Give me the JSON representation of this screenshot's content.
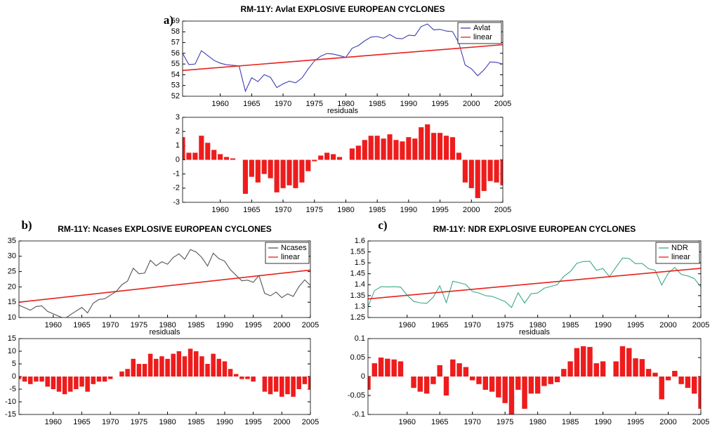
{
  "chart_data": [
    {
      "type": "line",
      "panel_label": "a)",
      "title": "RM-11Y: Avlat EXPLOSIVE EUROPEAN CYCLONES",
      "x": [
        1954,
        1955,
        1956,
        1957,
        1958,
        1959,
        1960,
        1961,
        1962,
        1963,
        1964,
        1965,
        1966,
        1967,
        1968,
        1969,
        1970,
        1971,
        1972,
        1973,
        1974,
        1975,
        1976,
        1977,
        1978,
        1979,
        1980,
        1981,
        1982,
        1983,
        1984,
        1985,
        1986,
        1987,
        1988,
        1989,
        1990,
        1991,
        1992,
        1993,
        1994,
        1995,
        1996,
        1997,
        1998,
        1999,
        2000,
        2001,
        2002,
        2003,
        2004,
        2005
      ],
      "xlim": [
        1954,
        2005
      ],
      "xticks": [
        1960,
        1965,
        1970,
        1975,
        1980,
        1985,
        1990,
        1995,
        2000,
        2005
      ],
      "ylim": [
        52,
        59
      ],
      "yticks": [
        52,
        53,
        54,
        55,
        56,
        57,
        58,
        59
      ],
      "legend": "upper right",
      "series": [
        {
          "name": "Avlat",
          "color": "#3c3cb4",
          "values": [
            56.0,
            54.95,
            55.0,
            56.24,
            55.79,
            55.34,
            55.08,
            54.93,
            54.88,
            54.82,
            52.47,
            53.72,
            53.36,
            54.01,
            53.76,
            52.81,
            53.15,
            53.4,
            53.25,
            53.69,
            54.54,
            55.29,
            55.73,
            55.98,
            55.93,
            55.78,
            55.62,
            56.47,
            56.72,
            57.16,
            57.51,
            57.56,
            57.4,
            57.75,
            57.4,
            57.35,
            57.69,
            57.64,
            58.49,
            58.73,
            58.18,
            58.23,
            58.07,
            58.02,
            56.97,
            54.91,
            54.56,
            53.91,
            54.45,
            55.2,
            55.15,
            55.0
          ]
        },
        {
          "name": "linear",
          "color": "#e8201c",
          "x": [
            1954,
            2005
          ],
          "values": [
            54.4,
            56.8
          ]
        }
      ]
    },
    {
      "type": "bar",
      "title": "residuals",
      "x": [
        1954,
        1955,
        1956,
        1957,
        1958,
        1959,
        1960,
        1961,
        1962,
        1963,
        1964,
        1965,
        1966,
        1967,
        1968,
        1969,
        1970,
        1971,
        1972,
        1973,
        1974,
        1975,
        1976,
        1977,
        1978,
        1979,
        1980,
        1981,
        1982,
        1983,
        1984,
        1985,
        1986,
        1987,
        1988,
        1989,
        1990,
        1991,
        1992,
        1993,
        1994,
        1995,
        1996,
        1997,
        1998,
        1999,
        2000,
        2001,
        2002,
        2003,
        2004,
        2005
      ],
      "xlim": [
        1954,
        2005
      ],
      "xticks": [
        1960,
        1965,
        1970,
        1975,
        1980,
        1985,
        1990,
        1995,
        2000,
        2005
      ],
      "ylim": [
        -3,
        3
      ],
      "yticks": [
        -3,
        -2,
        -1,
        0,
        1,
        2,
        3
      ],
      "color": "#ee1c1c",
      "values": [
        1.6,
        0.5,
        0.5,
        1.7,
        1.2,
        0.7,
        0.4,
        0.2,
        0.1,
        0.0,
        -2.4,
        -1.2,
        -1.6,
        -1.0,
        -1.3,
        -2.3,
        -2.0,
        -1.8,
        -2.0,
        -1.6,
        -0.8,
        -0.1,
        0.3,
        0.5,
        0.4,
        0.2,
        0.0,
        0.8,
        1.0,
        1.4,
        1.7,
        1.7,
        1.5,
        1.8,
        1.4,
        1.3,
        1.6,
        1.5,
        2.3,
        2.5,
        1.9,
        1.9,
        1.7,
        1.6,
        0.5,
        -1.6,
        -2.0,
        -2.7,
        -2.2,
        -1.5,
        -1.6,
        -1.8
      ]
    },
    {
      "type": "line",
      "panel_label": "b)",
      "title": "RM-11Y: Ncases EXPLOSIVE EUROPEAN CYCLONES",
      "x": [
        1954,
        1955,
        1956,
        1957,
        1958,
        1959,
        1960,
        1961,
        1962,
        1963,
        1964,
        1965,
        1966,
        1967,
        1968,
        1969,
        1970,
        1971,
        1972,
        1973,
        1974,
        1975,
        1976,
        1977,
        1978,
        1979,
        1980,
        1981,
        1982,
        1983,
        1984,
        1985,
        1986,
        1987,
        1988,
        1989,
        1990,
        1991,
        1992,
        1993,
        1994,
        1995,
        1996,
        1997,
        1998,
        1999,
        2000,
        2001,
        2002,
        2003,
        2004,
        2005
      ],
      "xlim": [
        1954,
        2005
      ],
      "xticks": [
        1960,
        1965,
        1970,
        1975,
        1980,
        1985,
        1990,
        1995,
        2000,
        2005
      ],
      "ylim": [
        10,
        35
      ],
      "yticks": [
        10,
        15,
        20,
        25,
        30,
        35
      ],
      "legend": "upper right",
      "series": [
        {
          "name": "Ncases",
          "color": "#555555",
          "values": [
            14.0,
            13.2,
            12.4,
            13.6,
            13.8,
            12.0,
            11.2,
            10.4,
            9.6,
            10.9,
            12.1,
            13.3,
            11.5,
            14.7,
            15.9,
            16.1,
            17.3,
            18.5,
            20.7,
            21.9,
            26.1,
            24.3,
            24.5,
            28.7,
            26.9,
            28.2,
            27.4,
            29.6,
            30.8,
            29.0,
            32.2,
            31.4,
            29.6,
            26.8,
            31.0,
            29.2,
            28.4,
            25.6,
            23.8,
            22.0,
            22.2,
            21.5,
            23.7,
            17.9,
            17.1,
            18.3,
            16.5,
            17.7,
            16.9,
            20.1,
            22.3,
            20.5
          ]
        },
        {
          "name": "linear",
          "color": "#e8201c",
          "x": [
            1954,
            2005
          ],
          "values": [
            15.0,
            25.5
          ]
        }
      ]
    },
    {
      "type": "bar",
      "title": "residuals",
      "x": [
        1954,
        1955,
        1956,
        1957,
        1958,
        1959,
        1960,
        1961,
        1962,
        1963,
        1964,
        1965,
        1966,
        1967,
        1968,
        1969,
        1970,
        1971,
        1972,
        1973,
        1974,
        1975,
        1976,
        1977,
        1978,
        1979,
        1980,
        1981,
        1982,
        1983,
        1984,
        1985,
        1986,
        1987,
        1988,
        1989,
        1990,
        1991,
        1992,
        1993,
        1994,
        1995,
        1996,
        1997,
        1998,
        1999,
        2000,
        2001,
        2002,
        2003,
        2004,
        2005
      ],
      "xlim": [
        1954,
        2005
      ],
      "xticks": [
        1960,
        1965,
        1970,
        1975,
        1980,
        1985,
        1990,
        1995,
        2000,
        2005
      ],
      "ylim": [
        -15,
        15
      ],
      "yticks": [
        -15,
        -10,
        -5,
        0,
        5,
        10,
        15
      ],
      "color": "#ee1c1c",
      "values": [
        -1,
        -2,
        -3,
        -2,
        -2,
        -4,
        -5,
        -6,
        -7,
        -6,
        -5,
        -4,
        -6,
        -3,
        -2,
        -2,
        -1,
        0,
        2,
        3,
        7,
        5,
        5,
        9,
        7,
        8,
        7,
        9,
        10,
        8,
        11,
        10,
        8,
        5,
        9,
        7,
        6,
        3,
        1,
        -1,
        -1,
        -2,
        0,
        -6,
        -7,
        -6,
        -8,
        -7,
        -8,
        -5,
        -3,
        -5
      ]
    },
    {
      "type": "line",
      "panel_label": "c)",
      "title": "RM-11Y: NDR EXPLOSIVE EUROPEAN CYCLONES",
      "x": [
        1954,
        1955,
        1956,
        1957,
        1958,
        1959,
        1960,
        1961,
        1962,
        1963,
        1964,
        1965,
        1966,
        1967,
        1968,
        1969,
        1970,
        1971,
        1972,
        1973,
        1974,
        1975,
        1976,
        1977,
        1978,
        1979,
        1980,
        1981,
        1982,
        1983,
        1984,
        1985,
        1986,
        1987,
        1988,
        1989,
        1990,
        1991,
        1992,
        1993,
        1994,
        1995,
        1996,
        1997,
        1998,
        1999,
        2000,
        2001,
        2002,
        2003,
        2004,
        2005
      ],
      "xlim": [
        1954,
        2005
      ],
      "xticks": [
        1960,
        1965,
        1970,
        1975,
        1980,
        1985,
        1990,
        1995,
        2000,
        2005
      ],
      "ylim": [
        1.25,
        1.6
      ],
      "yticks": [
        1.25,
        1.3,
        1.35,
        1.4,
        1.45,
        1.5,
        1.55,
        1.6
      ],
      "legend": "upper right",
      "series": [
        {
          "name": "NDR",
          "color": "#3ca888",
          "values": [
            1.3,
            1.373,
            1.391,
            1.39,
            1.391,
            1.389,
            1.352,
            1.324,
            1.317,
            1.315,
            1.343,
            1.395,
            1.318,
            1.416,
            1.409,
            1.401,
            1.369,
            1.362,
            1.35,
            1.347,
            1.335,
            1.323,
            1.296,
            1.363,
            1.316,
            1.359,
            1.362,
            1.384,
            1.392,
            1.4,
            1.438,
            1.46,
            1.498,
            1.506,
            1.507,
            1.466,
            1.474,
            1.437,
            1.48,
            1.522,
            1.52,
            1.496,
            1.497,
            1.473,
            1.466,
            1.399,
            1.452,
            1.479,
            1.447,
            1.44,
            1.428,
            1.39
          ]
        },
        {
          "name": "linear",
          "color": "#e8201c",
          "x": [
            1954,
            2005
          ],
          "values": [
            1.335,
            1.475
          ]
        }
      ]
    },
    {
      "type": "bar",
      "title": "residuals",
      "x": [
        1954,
        1955,
        1956,
        1957,
        1958,
        1959,
        1960,
        1961,
        1962,
        1963,
        1964,
        1965,
        1966,
        1967,
        1968,
        1969,
        1970,
        1971,
        1972,
        1973,
        1974,
        1975,
        1976,
        1977,
        1978,
        1979,
        1980,
        1981,
        1982,
        1983,
        1984,
        1985,
        1986,
        1987,
        1988,
        1989,
        1990,
        1991,
        1992,
        1993,
        1994,
        1995,
        1996,
        1997,
        1998,
        1999,
        2000,
        2001,
        2002,
        2003,
        2004,
        2005
      ],
      "xlim": [
        1954,
        2005
      ],
      "xticks": [
        1960,
        1965,
        1970,
        1975,
        1980,
        1985,
        1990,
        1995,
        2000,
        2005
      ],
      "ylim": [
        -0.1,
        0.1
      ],
      "yticks": [
        -0.1,
        -0.05,
        0,
        0.05,
        0.1
      ],
      "color": "#ee1c1c",
      "values": [
        -0.035,
        0.035,
        0.05,
        0.047,
        0.045,
        0.04,
        0.0,
        -0.03,
        -0.04,
        -0.045,
        -0.02,
        0.03,
        -0.05,
        0.045,
        0.035,
        0.025,
        -0.01,
        -0.02,
        -0.035,
        -0.04,
        -0.055,
        -0.07,
        -0.1,
        -0.035,
        -0.085,
        -0.045,
        -0.045,
        -0.025,
        -0.02,
        -0.015,
        0.02,
        0.04,
        0.075,
        0.08,
        0.078,
        0.035,
        0.04,
        0.0,
        0.04,
        0.08,
        0.075,
        0.048,
        0.046,
        0.02,
        0.01,
        -0.06,
        -0.01,
        0.015,
        -0.02,
        -0.03,
        -0.045,
        -0.085
      ]
    }
  ]
}
